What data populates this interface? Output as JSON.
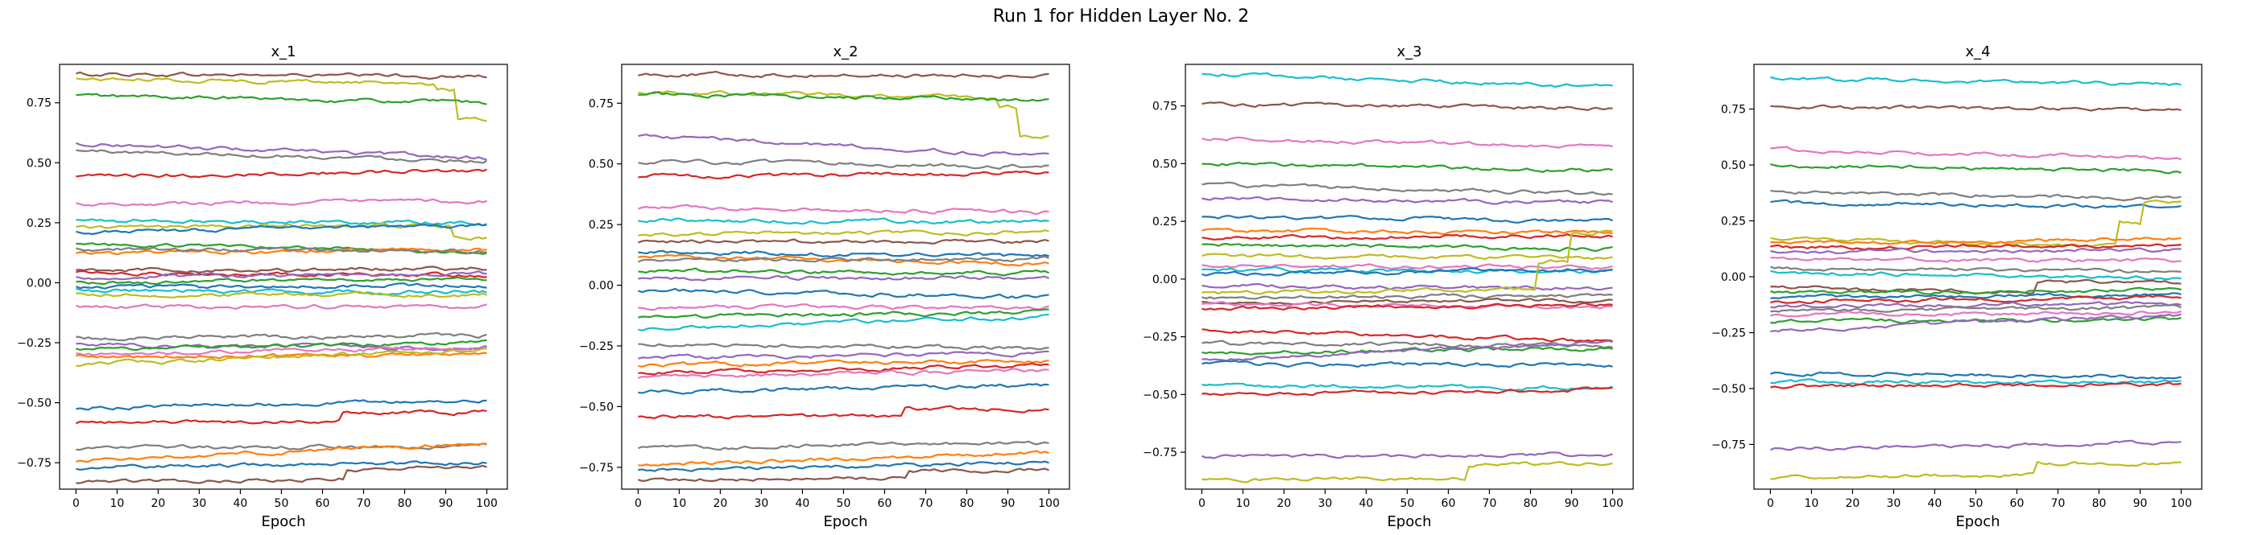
{
  "figure": {
    "title": "Run 1 for Hidden Layer No. 2"
  },
  "palette": [
    "#1f77b4",
    "#ff7f0e",
    "#2ca02c",
    "#d62728",
    "#9467bd",
    "#8c564b",
    "#e377c2",
    "#7f7f7f",
    "#bcbd22",
    "#17becf"
  ],
  "chart_data": [
    {
      "type": "line",
      "title": "x_1",
      "xlabel": "Epoch",
      "ylabel": "",
      "xlim": [
        -4,
        105
      ],
      "ylim": [
        -0.86,
        0.91
      ],
      "xticks": [
        0,
        10,
        20,
        30,
        40,
        50,
        60,
        70,
        80,
        90,
        100
      ],
      "xtick_labels": [
        "0",
        "10",
        "20",
        "30",
        "40",
        "50",
        "60",
        "70",
        "80",
        "90",
        "100"
      ],
      "yticks": [
        -0.75,
        -0.5,
        -0.25,
        0.0,
        0.25,
        0.5,
        0.75
      ],
      "ytick_labels": [
        "−0.75",
        "−0.50",
        "−0.25",
        "0.00",
        "0.25",
        "0.50",
        "0.75"
      ],
      "grid": false,
      "x_range": [
        0,
        100
      ],
      "series": [
        {
          "start": 0.87,
          "end": 0.86,
          "color": "#8c564b"
        },
        {
          "start": 0.85,
          "end": 0.68,
          "color": "#bcbd22",
          "steps": [
            [
              88,
              -0.03
            ],
            [
              93,
              -0.12
            ]
          ]
        },
        {
          "start": 0.78,
          "end": 0.75,
          "color": "#2ca02c"
        },
        {
          "start": 0.58,
          "end": 0.52,
          "color": "#9467bd"
        },
        {
          "start": 0.55,
          "end": 0.51,
          "color": "#7f7f7f"
        },
        {
          "start": 0.44,
          "end": 0.47,
          "color": "#d62728"
        },
        {
          "start": 0.33,
          "end": 0.34,
          "color": "#e377c2"
        },
        {
          "start": 0.26,
          "end": 0.25,
          "color": "#17becf"
        },
        {
          "start": 0.23,
          "end": 0.19,
          "color": "#bcbd22",
          "steps": [
            [
              92,
              -0.05
            ]
          ]
        },
        {
          "start": 0.21,
          "end": 0.24,
          "color": "#1f77b4"
        },
        {
          "start": 0.16,
          "end": 0.13,
          "color": "#2ca02c"
        },
        {
          "start": 0.12,
          "end": 0.14,
          "color": "#ff7f0e"
        },
        {
          "start": 0.14,
          "end": 0.13,
          "color": "#7f7f7f"
        },
        {
          "start": 0.05,
          "end": 0.06,
          "color": "#8c564b"
        },
        {
          "start": 0.04,
          "end": 0.03,
          "color": "#d62728"
        },
        {
          "start": 0.02,
          "end": 0.04,
          "color": "#9467bd"
        },
        {
          "start": 0.0,
          "end": 0.02,
          "color": "#2ca02c"
        },
        {
          "start": -0.02,
          "end": -0.01,
          "color": "#1f77b4"
        },
        {
          "start": -0.03,
          "end": -0.04,
          "color": "#17becf"
        },
        {
          "start": -0.05,
          "end": -0.05,
          "color": "#bcbd22"
        },
        {
          "start": -0.1,
          "end": -0.1,
          "color": "#e377c2"
        },
        {
          "start": -0.23,
          "end": -0.22,
          "color": "#7f7f7f"
        },
        {
          "start": -0.26,
          "end": -0.27,
          "color": "#9467bd"
        },
        {
          "start": -0.28,
          "end": -0.25,
          "color": "#2ca02c"
        },
        {
          "start": -0.3,
          "end": -0.27,
          "color": "#e377c2"
        },
        {
          "start": -0.31,
          "end": -0.3,
          "color": "#ff7f0e"
        },
        {
          "start": -0.34,
          "end": -0.28,
          "color": "#bcbd22"
        },
        {
          "start": -0.52,
          "end": -0.49,
          "color": "#1f77b4"
        },
        {
          "start": -0.58,
          "end": -0.54,
          "color": "#d62728",
          "steps": [
            [
              65,
              0.03
            ]
          ]
        },
        {
          "start": -0.69,
          "end": -0.68,
          "color": "#7f7f7f"
        },
        {
          "start": -0.74,
          "end": -0.67,
          "color": "#ff7f0e"
        },
        {
          "start": -0.77,
          "end": -0.75,
          "color": "#1f77b4"
        },
        {
          "start": -0.83,
          "end": -0.77,
          "color": "#8c564b",
          "steps": [
            [
              66,
              0.04
            ]
          ]
        }
      ]
    },
    {
      "type": "line",
      "title": "x_2",
      "xlabel": "Epoch",
      "ylabel": "",
      "xlim": [
        -4,
        105
      ],
      "ylim": [
        -0.84,
        0.91
      ],
      "xticks": [
        0,
        10,
        20,
        30,
        40,
        50,
        60,
        70,
        80,
        90,
        100
      ],
      "xtick_labels": [
        "0",
        "10",
        "20",
        "30",
        "40",
        "50",
        "60",
        "70",
        "80",
        "90",
        "100"
      ],
      "yticks": [
        -0.75,
        -0.5,
        -0.25,
        0.0,
        0.25,
        0.5,
        0.75
      ],
      "ytick_labels": [
        "−0.75",
        "−0.50",
        "−0.25",
        "0.00",
        "0.25",
        "0.50",
        "0.75"
      ],
      "grid": false,
      "x_range": [
        0,
        100
      ],
      "series": [
        {
          "start": 0.87,
          "end": 0.86,
          "color": "#8c564b"
        },
        {
          "start": 0.8,
          "end": 0.61,
          "color": "#bcbd22",
          "steps": [
            [
              88,
              -0.04
            ],
            [
              93,
              -0.12
            ]
          ]
        },
        {
          "start": 0.79,
          "end": 0.76,
          "color": "#2ca02c"
        },
        {
          "start": 0.62,
          "end": 0.53,
          "color": "#9467bd"
        },
        {
          "start": 0.51,
          "end": 0.49,
          "color": "#7f7f7f"
        },
        {
          "start": 0.45,
          "end": 0.46,
          "color": "#d62728"
        },
        {
          "start": 0.32,
          "end": 0.3,
          "color": "#e377c2"
        },
        {
          "start": 0.27,
          "end": 0.26,
          "color": "#17becf"
        },
        {
          "start": 0.21,
          "end": 0.22,
          "color": "#bcbd22"
        },
        {
          "start": 0.18,
          "end": 0.18,
          "color": "#8c564b"
        },
        {
          "start": 0.14,
          "end": 0.12,
          "color": "#1f77b4"
        },
        {
          "start": 0.12,
          "end": 0.09,
          "color": "#ff7f0e"
        },
        {
          "start": 0.1,
          "end": 0.11,
          "color": "#7f7f7f"
        },
        {
          "start": 0.06,
          "end": 0.05,
          "color": "#2ca02c"
        },
        {
          "start": 0.03,
          "end": 0.03,
          "color": "#9467bd"
        },
        {
          "start": -0.02,
          "end": -0.05,
          "color": "#1f77b4"
        },
        {
          "start": -0.09,
          "end": -0.09,
          "color": "#e377c2"
        },
        {
          "start": -0.13,
          "end": -0.11,
          "color": "#2ca02c"
        },
        {
          "start": -0.18,
          "end": -0.13,
          "color": "#17becf"
        },
        {
          "start": -0.24,
          "end": -0.26,
          "color": "#7f7f7f"
        },
        {
          "start": -0.3,
          "end": -0.28,
          "color": "#9467bd"
        },
        {
          "start": -0.33,
          "end": -0.31,
          "color": "#ff7f0e"
        },
        {
          "start": -0.36,
          "end": -0.33,
          "color": "#d62728"
        },
        {
          "start": -0.38,
          "end": -0.35,
          "color": "#e377c2"
        },
        {
          "start": -0.44,
          "end": -0.41,
          "color": "#1f77b4"
        },
        {
          "start": -0.54,
          "end": -0.51,
          "color": "#d62728",
          "steps": [
            [
              65,
              0.03
            ]
          ]
        },
        {
          "start": -0.67,
          "end": -0.65,
          "color": "#7f7f7f"
        },
        {
          "start": -0.74,
          "end": -0.69,
          "color": "#ff7f0e"
        },
        {
          "start": -0.76,
          "end": -0.73,
          "color": "#1f77b4"
        },
        {
          "start": -0.8,
          "end": -0.76,
          "color": "#8c564b",
          "steps": [
            [
              66,
              0.03
            ]
          ]
        }
      ]
    },
    {
      "type": "line",
      "title": "x_3",
      "xlabel": "Epoch",
      "ylabel": "",
      "xlim": [
        -4,
        105
      ],
      "ylim": [
        -0.91,
        0.93
      ],
      "xticks": [
        0,
        10,
        20,
        30,
        40,
        50,
        60,
        70,
        80,
        90,
        100
      ],
      "xtick_labels": [
        "0",
        "10",
        "20",
        "30",
        "40",
        "50",
        "60",
        "70",
        "80",
        "90",
        "100"
      ],
      "yticks": [
        -0.75,
        -0.5,
        -0.25,
        0.0,
        0.25,
        0.5,
        0.75
      ],
      "ytick_labels": [
        "−0.75",
        "−0.50",
        "−0.25",
        "0.00",
        "0.25",
        "0.50",
        "0.75"
      ],
      "grid": false,
      "x_range": [
        0,
        100
      ],
      "series": [
        {
          "start": 0.89,
          "end": 0.83,
          "color": "#17becf"
        },
        {
          "start": 0.76,
          "end": 0.74,
          "color": "#8c564b"
        },
        {
          "start": 0.61,
          "end": 0.57,
          "color": "#e377c2"
        },
        {
          "start": 0.5,
          "end": 0.47,
          "color": "#2ca02c"
        },
        {
          "start": 0.41,
          "end": 0.37,
          "color": "#7f7f7f"
        },
        {
          "start": 0.35,
          "end": 0.33,
          "color": "#9467bd"
        },
        {
          "start": 0.27,
          "end": 0.25,
          "color": "#1f77b4"
        },
        {
          "start": 0.21,
          "end": 0.2,
          "color": "#ff7f0e"
        },
        {
          "start": 0.18,
          "end": 0.19,
          "color": "#d62728"
        },
        {
          "start": 0.15,
          "end": 0.13,
          "color": "#2ca02c"
        },
        {
          "start": 0.1,
          "end": 0.09,
          "color": "#bcbd22"
        },
        {
          "start": 0.06,
          "end": 0.05,
          "color": "#e377c2"
        },
        {
          "start": 0.04,
          "end": 0.03,
          "color": "#17becf"
        },
        {
          "start": 0.02,
          "end": 0.04,
          "color": "#1f77b4"
        },
        {
          "start": -0.03,
          "end": -0.04,
          "color": "#9467bd"
        },
        {
          "start": -0.06,
          "end": 0.2,
          "color": "#bcbd22",
          "steps": [
            [
              82,
              0.12
            ],
            [
              90,
              0.12
            ]
          ]
        },
        {
          "start": -0.08,
          "end": -0.07,
          "color": "#7f7f7f"
        },
        {
          "start": -0.1,
          "end": -0.09,
          "color": "#8c564b"
        },
        {
          "start": -0.11,
          "end": -0.12,
          "color": "#e377c2"
        },
        {
          "start": -0.13,
          "end": -0.11,
          "color": "#d62728"
        },
        {
          "start": -0.22,
          "end": -0.27,
          "color": "#d62728"
        },
        {
          "start": -0.28,
          "end": -0.29,
          "color": "#7f7f7f"
        },
        {
          "start": -0.32,
          "end": -0.3,
          "color": "#2ca02c"
        },
        {
          "start": -0.35,
          "end": -0.27,
          "color": "#9467bd"
        },
        {
          "start": -0.37,
          "end": -0.37,
          "color": "#1f77b4"
        },
        {
          "start": -0.46,
          "end": -0.47,
          "color": "#17becf"
        },
        {
          "start": -0.5,
          "end": -0.48,
          "color": "#d62728"
        },
        {
          "start": -0.77,
          "end": -0.76,
          "color": "#9467bd"
        },
        {
          "start": -0.87,
          "end": -0.8,
          "color": "#bcbd22",
          "steps": [
            [
              65,
              0.06
            ]
          ]
        }
      ]
    },
    {
      "type": "line",
      "title": "x_4",
      "xlabel": "Epoch",
      "ylabel": "",
      "xlim": [
        -4,
        105
      ],
      "ylim": [
        -0.95,
        0.95
      ],
      "xticks": [
        0,
        10,
        20,
        30,
        40,
        50,
        60,
        70,
        80,
        90,
        100
      ],
      "xtick_labels": [
        "0",
        "10",
        "20",
        "30",
        "40",
        "50",
        "60",
        "70",
        "80",
        "90",
        "100"
      ],
      "yticks": [
        -0.75,
        -0.5,
        -0.25,
        0.0,
        0.25,
        0.5,
        0.75
      ],
      "ytick_labels": [
        "−0.75",
        "−0.50",
        "−0.25",
        "0.00",
        "0.25",
        "0.50",
        "0.75"
      ],
      "grid": false,
      "x_range": [
        0,
        100
      ],
      "series": [
        {
          "start": 0.89,
          "end": 0.86,
          "color": "#17becf"
        },
        {
          "start": 0.76,
          "end": 0.75,
          "color": "#8c564b"
        },
        {
          "start": 0.57,
          "end": 0.53,
          "color": "#e377c2"
        },
        {
          "start": 0.5,
          "end": 0.47,
          "color": "#2ca02c"
        },
        {
          "start": 0.38,
          "end": 0.35,
          "color": "#7f7f7f"
        },
        {
          "start": 0.33,
          "end": 0.31,
          "color": "#1f77b4"
        },
        {
          "start": 0.17,
          "end": 0.33,
          "color": "#bcbd22",
          "steps": [
            [
              85,
              0.1
            ],
            [
              91,
              0.1
            ]
          ]
        },
        {
          "start": 0.15,
          "end": 0.17,
          "color": "#ff7f0e"
        },
        {
          "start": 0.13,
          "end": 0.14,
          "color": "#d62728"
        },
        {
          "start": 0.11,
          "end": 0.12,
          "color": "#9467bd"
        },
        {
          "start": 0.08,
          "end": 0.07,
          "color": "#e377c2"
        },
        {
          "start": 0.04,
          "end": 0.02,
          "color": "#7f7f7f"
        },
        {
          "start": 0.02,
          "end": -0.01,
          "color": "#17becf"
        },
        {
          "start": -0.05,
          "end": -0.03,
          "color": "#8c564b",
          "steps": [
            [
              65,
              0.05
            ]
          ]
        },
        {
          "start": -0.07,
          "end": -0.06,
          "color": "#2ca02c"
        },
        {
          "start": -0.09,
          "end": -0.08,
          "color": "#1f77b4"
        },
        {
          "start": -0.11,
          "end": -0.09,
          "color": "#d62728"
        },
        {
          "start": -0.13,
          "end": -0.12,
          "color": "#9467bd"
        },
        {
          "start": -0.15,
          "end": -0.14,
          "color": "#7f7f7f"
        },
        {
          "start": -0.17,
          "end": -0.16,
          "color": "#e377c2"
        },
        {
          "start": -0.2,
          "end": -0.19,
          "color": "#2ca02c"
        },
        {
          "start": -0.24,
          "end": -0.17,
          "color": "#9467bd"
        },
        {
          "start": -0.43,
          "end": -0.45,
          "color": "#1f77b4"
        },
        {
          "start": -0.47,
          "end": -0.47,
          "color": "#17becf"
        },
        {
          "start": -0.49,
          "end": -0.48,
          "color": "#d62728"
        },
        {
          "start": -0.77,
          "end": -0.74,
          "color": "#9467bd"
        },
        {
          "start": -0.9,
          "end": -0.83,
          "color": "#bcbd22",
          "steps": [
            [
              65,
              0.05
            ]
          ]
        }
      ]
    }
  ]
}
